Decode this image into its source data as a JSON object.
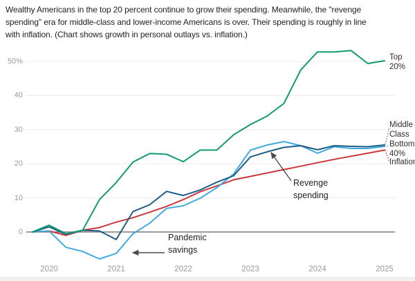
{
  "title": "Wealthy Americans in the top 20 percent continue to grow their spending. Meanwhile, the \"revenge\nspending\" era for middle-class and lower-income Americans is over. Their spending is roughly in line\nwith inflation. (Chart shows growth in personal outlays vs. inflation.)",
  "annotations": {
    "revenge": {
      "text": "Revenge\nspending"
    },
    "pandemic": {
      "text": "Pandemic\nsavings"
    }
  },
  "chart_data": {
    "type": "line",
    "title": "Growth in personal outlays vs. inflation",
    "ylabel": "",
    "xlabel": "",
    "ylim": [
      -10,
      55
    ],
    "grid": "horizontal",
    "legend_position": "line-end-right",
    "x_start": 2019.75,
    "x_step": 0.25,
    "x_label_ticks": [
      2020,
      2021,
      2022,
      2023,
      2024,
      2025
    ],
    "y_ticks": [
      {
        "value": 0,
        "label": "0"
      },
      {
        "value": 10,
        "label": "10"
      },
      {
        "value": 20,
        "label": "20"
      },
      {
        "value": 30,
        "label": "30"
      },
      {
        "value": 40,
        "label": "40"
      },
      {
        "value": 50,
        "label": "50%"
      }
    ],
    "series": [
      {
        "name": "Top 20%",
        "label": "Top\n20%",
        "color": "#109a70",
        "values": [
          0,
          2,
          -0.5,
          0.5,
          9.5,
          14.5,
          20.5,
          23,
          22.8,
          20.6,
          24,
          24,
          28.5,
          31.5,
          34,
          37.7,
          47.5,
          52.8,
          52.8,
          53.2,
          49.4,
          50.2
        ]
      },
      {
        "name": "Middle Class",
        "label": "Middle\nClass",
        "color": "#1c5d88",
        "values": [
          0,
          1.5,
          -0.7,
          0.5,
          0.3,
          -2.2,
          6,
          8,
          11.9,
          10.7,
          12.3,
          14.6,
          16.5,
          22,
          23.5,
          24.8,
          25.3,
          24.1,
          25.3,
          25.1,
          25,
          25.5
        ]
      },
      {
        "name": "Bottom 40%",
        "label": "Bottom\n40%",
        "color": "#3fa9e0",
        "values": [
          0,
          0.3,
          -4.5,
          -5.7,
          -7.9,
          -6.3,
          -0.5,
          2.6,
          6.9,
          7.7,
          9.9,
          13,
          17,
          24,
          25.5,
          26.5,
          25.3,
          23.1,
          25,
          24.5,
          24.5,
          25.1
        ]
      },
      {
        "name": "Inflation",
        "label": "Inflation",
        "color": "#cb3638",
        "values": [
          0,
          0.3,
          -1,
          0.5,
          1.3,
          2.9,
          4.2,
          5.8,
          7.5,
          9.5,
          11.8,
          13.5,
          15.3,
          16.3,
          17.3,
          18.3,
          19.3,
          20.3,
          21.3,
          22.2,
          23.1,
          24
        ]
      }
    ]
  }
}
